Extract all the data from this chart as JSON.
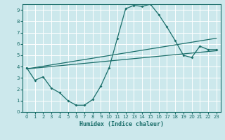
{
  "xlabel": "Humidex (Indice chaleur)",
  "xlim": [
    -0.5,
    23.5
  ],
  "ylim": [
    0,
    9.5
  ],
  "bg_color": "#cce8ec",
  "grid_color": "#ffffff",
  "line_color": "#1a6e6a",
  "line1_x": [
    0,
    1,
    2,
    3,
    4,
    5,
    6,
    7,
    8,
    9,
    10,
    11,
    12,
    13,
    14,
    15,
    16,
    17,
    18,
    19,
    20,
    21,
    22,
    23
  ],
  "line1_y": [
    3.9,
    2.8,
    3.1,
    2.1,
    1.7,
    1.0,
    0.6,
    0.6,
    1.1,
    2.3,
    3.9,
    6.5,
    9.1,
    9.4,
    9.3,
    9.5,
    8.6,
    7.5,
    6.3,
    5.0,
    4.8,
    5.8,
    5.5,
    5.5
  ],
  "line2_x": [
    0,
    23
  ],
  "line2_y": [
    3.8,
    6.5
  ],
  "line3_x": [
    0,
    23
  ],
  "line3_y": [
    3.8,
    5.4
  ]
}
